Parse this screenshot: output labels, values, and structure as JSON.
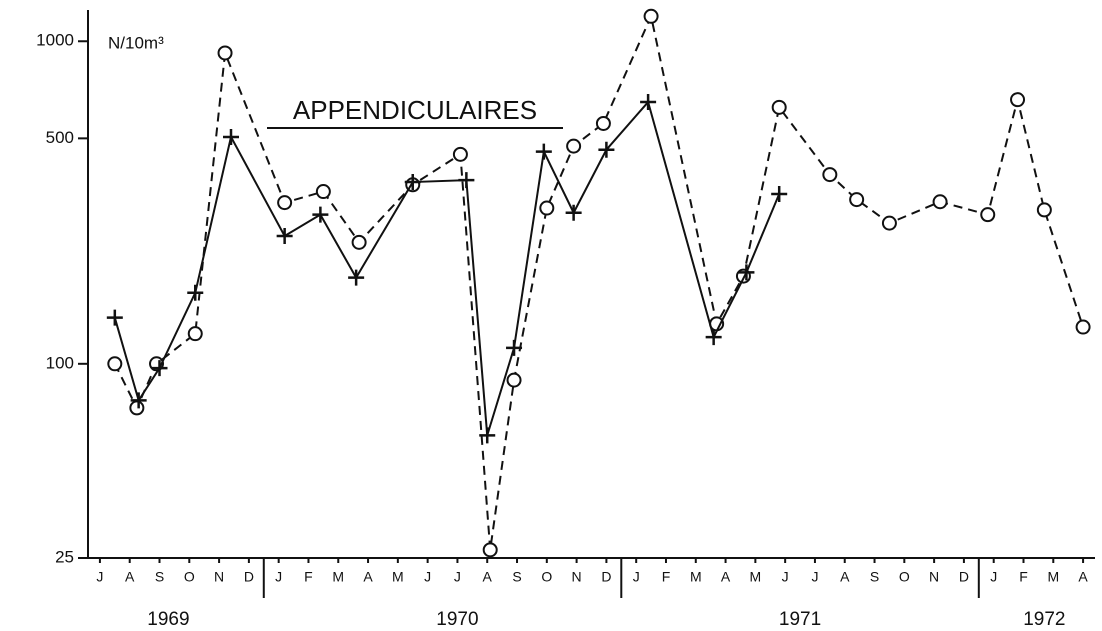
{
  "chart_data": {
    "type": "line",
    "title": "APPENDICULAIRES",
    "y_label": "N/10m³",
    "log_scale": true,
    "ylim": [
      25,
      1250
    ],
    "yticks": [
      25,
      100,
      500,
      1000
    ],
    "xlim": [
      -0.4,
      33.4
    ],
    "xticks": [
      {
        "value": 0,
        "label": "J"
      },
      {
        "value": 1,
        "label": "A"
      },
      {
        "value": 2,
        "label": "S"
      },
      {
        "value": 3,
        "label": "O"
      },
      {
        "value": 4,
        "label": "N"
      },
      {
        "value": 5,
        "label": "D"
      },
      {
        "value": 6,
        "label": "J"
      },
      {
        "value": 7,
        "label": "F"
      },
      {
        "value": 8,
        "label": "M"
      },
      {
        "value": 9,
        "label": "A"
      },
      {
        "value": 10,
        "label": "M"
      },
      {
        "value": 11,
        "label": "J"
      },
      {
        "value": 12,
        "label": "J"
      },
      {
        "value": 13,
        "label": "A"
      },
      {
        "value": 14,
        "label": "S"
      },
      {
        "value": 15,
        "label": "O"
      },
      {
        "value": 16,
        "label": "N"
      },
      {
        "value": 17,
        "label": "D"
      },
      {
        "value": 18,
        "label": "J"
      },
      {
        "value": 19,
        "label": "F"
      },
      {
        "value": 20,
        "label": "M"
      },
      {
        "value": 21,
        "label": "A"
      },
      {
        "value": 22,
        "label": "M"
      },
      {
        "value": 23,
        "label": "J"
      },
      {
        "value": 24,
        "label": "J"
      },
      {
        "value": 25,
        "label": "A"
      },
      {
        "value": 26,
        "label": "S"
      },
      {
        "value": 27,
        "label": "O"
      },
      {
        "value": 28,
        "label": "N"
      },
      {
        "value": 29,
        "label": "D"
      },
      {
        "value": 30,
        "label": "J"
      },
      {
        "value": 31,
        "label": "F"
      },
      {
        "value": 32,
        "label": "M"
      },
      {
        "value": 33,
        "label": "A"
      }
    ],
    "years": [
      "1969",
      "1970",
      "1971",
      "1972"
    ],
    "series": [
      {
        "color": "#111111",
        "style": "dashed",
        "marker": "circle",
        "x": [
          0.5,
          1.24,
          1.9,
          3.2,
          4.2,
          6.2,
          7.5,
          8.7,
          10.5,
          12.1,
          13.1,
          13.9,
          15.0,
          15.9,
          16.9,
          18.5,
          20.7,
          21.6,
          22.8,
          24.5,
          25.4,
          26.5,
          28.2,
          29.8,
          30.8,
          31.7,
          33.0
        ],
        "values": [
          100,
          73,
          100,
          124,
          920,
          316,
          342,
          238,
          359,
          446,
          26.5,
          89,
          304,
          473,
          556,
          1195,
          133,
          187,
          624,
          386,
          323,
          273,
          318,
          290,
          659,
          300,
          130
        ]
      },
      {
        "color": "#111111",
        "style": "solid",
        "marker": "plus",
        "x": [
          0.5,
          1.3,
          2.0,
          3.2,
          4.4,
          6.2,
          7.4,
          8.6,
          10.5,
          12.3,
          13.0,
          13.9,
          14.9,
          15.9,
          17.0,
          18.4,
          20.6,
          21.7,
          22.8
        ],
        "values": [
          139,
          77,
          97,
          166,
          505,
          249,
          290,
          185,
          366,
          371,
          60,
          112,
          455,
          294,
          461,
          648,
          121,
          192,
          336
        ]
      }
    ]
  }
}
